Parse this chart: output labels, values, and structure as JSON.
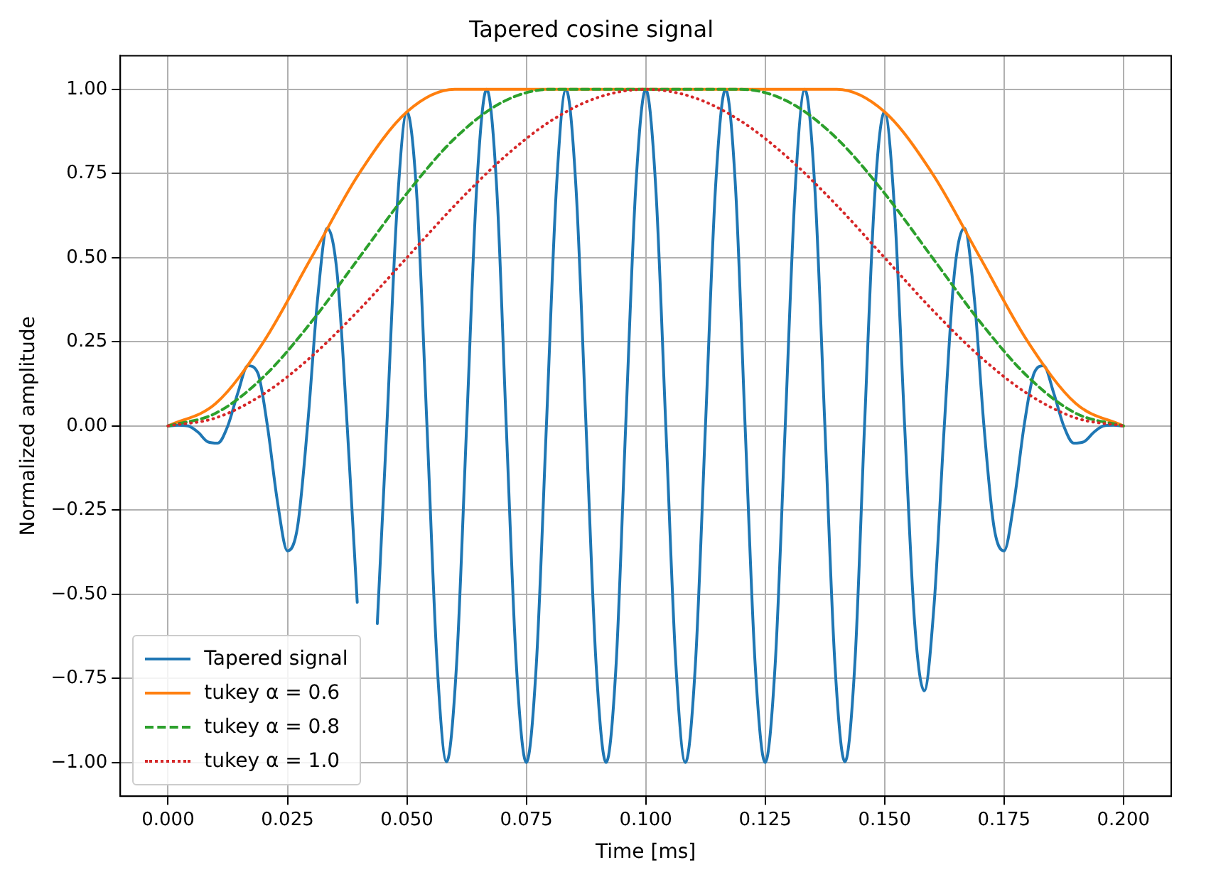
{
  "chart_data": {
    "type": "line",
    "title": "Tapered cosine signal",
    "xlabel": "Time [ms]",
    "ylabel": "Normalized amplitude",
    "x": [
      0,
      0.01,
      0.02,
      0.03,
      0.04,
      0.05,
      0.06,
      0.07,
      0.08,
      0.09,
      0.1,
      0.11,
      0.12,
      0.13,
      0.14,
      0.15,
      0.16,
      0.17,
      0.18,
      0.19,
      0.2
    ],
    "series": [
      {
        "name": "Tapered signal",
        "color": "#1f77b4",
        "line_style": "solid",
        "x": [
          0,
          0.0021,
          0.0042,
          0.0063,
          0.0083,
          0.0104,
          0.0125,
          0.0146,
          0.0167,
          0.0188,
          0.0208,
          0.0229,
          0.025,
          0.0271,
          0.0292,
          0.0313,
          0.0333,
          0.0354,
          0.0375,
          0.0396,
          0.0417,
          0.0438,
          0.0458,
          0.0479,
          0.05,
          0.0521,
          0.0542,
          0.0563,
          0.0583,
          0.0604,
          0.0625,
          0.0646,
          0.0667,
          0.0688,
          0.0708,
          0.0729,
          0.075,
          0.0771,
          0.0792,
          0.0813,
          0.0833,
          0.0854,
          0.0875,
          0.0896,
          0.0917,
          0.0938,
          0.0958,
          0.0979,
          0.1,
          0.1021,
          0.1042,
          0.1063,
          0.1083,
          0.1104,
          0.1125,
          0.1146,
          0.1167,
          0.1188,
          0.1208,
          0.1229,
          0.125,
          0.1271,
          0.1292,
          0.1313,
          0.1333,
          0.1354,
          0.1375,
          0.1396,
          0.1417,
          0.1438,
          0.1458,
          0.1479,
          0.15,
          0.1521,
          0.1542,
          0.1563,
          0.1583,
          0.1604,
          0.1625,
          0.1646,
          0.1667,
          0.1688,
          0.1708,
          0.1729,
          0.175,
          0.1771,
          0.1792,
          0.1813,
          0.1833,
          0.1854,
          0.1875,
          0.1896,
          0.1917,
          0.1938,
          0.1958,
          0.1979,
          0.2
        ],
        "values": [
          0,
          0.002,
          0,
          -0.019,
          -0.047,
          -0.051,
          0,
          0.098,
          0.179,
          0.157,
          0,
          -0.225,
          -0.371,
          -0.3,
          0,
          0.377,
          0.587,
          0.452,
          0,
          -0.524,
          null,
          -0.587,
          0,
          0.638,
          0.933,
          0.677,
          0,
          -0.7,
          -0.998,
          -0.707,
          0,
          0.707,
          1,
          0.707,
          0,
          -0.707,
          -1,
          -0.707,
          0,
          0.707,
          1,
          0.707,
          0,
          -0.707,
          -1,
          -0.707,
          0,
          0.707,
          1,
          0.707,
          0,
          -0.707,
          -1,
          -0.707,
          0,
          0.707,
          1,
          0.707,
          0,
          -0.707,
          -1,
          -0.707,
          0,
          0.707,
          1,
          0.707,
          0,
          -0.707,
          -0.998,
          -0.7,
          0,
          0.677,
          0.933,
          0.638,
          0,
          -0.587,
          -0.787,
          -0.524,
          0,
          0.452,
          0.587,
          0.377,
          0,
          -0.3,
          -0.371,
          -0.225,
          0,
          0.157,
          0.179,
          0.098,
          0,
          -0.051,
          -0.047,
          -0.019,
          0,
          0.002,
          0
        ]
      },
      {
        "name": "tukey α = 0.6",
        "color": "#ff7f0e",
        "line_style": "solid",
        "values": [
          0,
          0.067,
          0.25,
          0.5,
          0.75,
          0.933,
          1,
          1,
          1,
          1,
          1,
          1,
          1,
          1,
          1,
          0.933,
          0.75,
          0.5,
          0.25,
          0.067,
          0
        ]
      },
      {
        "name": "tukey α = 0.8",
        "color": "#2ca02c",
        "line_style": "dashed",
        "values": [
          0,
          0.038,
          0.146,
          0.309,
          0.5,
          0.691,
          0.854,
          0.962,
          1,
          1,
          1,
          1,
          1,
          0.962,
          0.854,
          0.691,
          0.5,
          0.309,
          0.146,
          0.038,
          0
        ]
      },
      {
        "name": "tukey α = 1.0",
        "color": "#d62728",
        "line_style": "dotted",
        "values": [
          0,
          0.024,
          0.095,
          0.206,
          0.345,
          0.5,
          0.655,
          0.794,
          0.905,
          0.976,
          1,
          0.976,
          0.905,
          0.794,
          0.655,
          0.5,
          0.345,
          0.206,
          0.095,
          0.024,
          0
        ]
      }
    ],
    "xlim": [
      -0.01,
      0.21
    ],
    "xticks": [
      {
        "value": 0,
        "label": "0.000"
      },
      {
        "value": 0.025,
        "label": "0.025"
      },
      {
        "value": 0.05,
        "label": "0.050"
      },
      {
        "value": 0.075,
        "label": "0.075"
      },
      {
        "value": 0.1,
        "label": "0.100"
      },
      {
        "value": 0.125,
        "label": "0.125"
      },
      {
        "value": 0.15,
        "label": "0.150"
      },
      {
        "value": 0.175,
        "label": "0.175"
      },
      {
        "value": 0.2,
        "label": "0.200"
      }
    ],
    "ylim": [
      -1.1,
      1.1
    ],
    "yticks": [
      {
        "value": -1,
        "label": "−1.00"
      },
      {
        "value": -0.75,
        "label": "−0.75"
      },
      {
        "value": -0.5,
        "label": "−0.50"
      },
      {
        "value": -0.25,
        "label": "−0.25"
      },
      {
        "value": 0,
        "label": "0.00"
      },
      {
        "value": 0.25,
        "label": "0.25"
      },
      {
        "value": 0.5,
        "label": "0.50"
      },
      {
        "value": 0.75,
        "label": "0.75"
      },
      {
        "value": 1,
        "label": "1.00"
      }
    ],
    "grid": true,
    "legend": "bottom left",
    "marker": "none"
  }
}
